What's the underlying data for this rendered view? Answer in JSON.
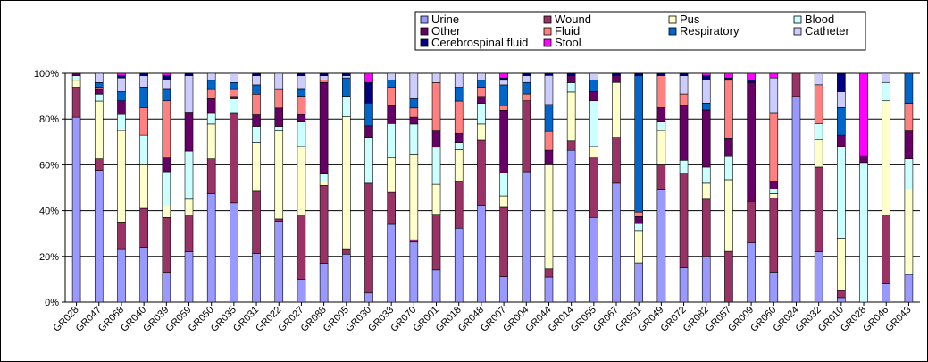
{
  "chart_data": {
    "type": "bar",
    "stacked": "percent",
    "title": "",
    "xlabel": "",
    "ylabel": "",
    "ylim": [
      0,
      100
    ],
    "y_ticks": [
      "0%",
      "20%",
      "40%",
      "60%",
      "80%",
      "100%"
    ],
    "legend_position": "top-right",
    "categories": [
      "GR028",
      "GR047",
      "GR068",
      "GR040",
      "GR039",
      "GR059",
      "GR050",
      "GR035",
      "GR031",
      "GR022",
      "GR027",
      "GR088",
      "GR005",
      "GR030",
      "GR033",
      "GR070",
      "GR001",
      "GR018",
      "GR048",
      "GR007",
      "GR004",
      "GR044",
      "GR014",
      "GR055",
      "GR067",
      "GR051",
      "GR049",
      "GR072",
      "GR082",
      "GR057",
      "GR009",
      "GR060",
      "GR024",
      "GR032",
      "GR010",
      "GR028",
      "GR046",
      "GR043"
    ],
    "tick_labels_shown": [
      "GR028",
      "GR047",
      "GR068",
      "GR040",
      "GR039",
      "GR059",
      "GR050",
      "GR035",
      "GR031",
      "GR022",
      "GR027",
      "GR088",
      "GR005",
      "GR030",
      "GR033",
      "GR070",
      "GR001",
      "GR018",
      "GR048",
      "GR007",
      "GR004",
      "GR044",
      "GR014",
      "GR055",
      "GR067",
      "GR051",
      "GR049",
      "GR072",
      "GR082",
      "GR057",
      "GR009",
      "GR060",
      "GR024",
      "GR032",
      "GR010",
      "GR028",
      "GR046",
      "GR043"
    ],
    "series": [
      {
        "name": "Urine",
        "color": "#9999ff",
        "values": [
          80,
          57,
          23,
          24,
          13,
          22,
          47,
          43,
          21,
          35,
          10,
          17,
          21,
          4,
          34,
          26,
          14,
          32,
          42,
          11,
          57,
          12,
          65,
          37,
          52,
          17,
          49,
          15,
          20,
          0,
          26,
          13,
          80,
          22,
          2,
          0,
          8,
          12
        ]
      },
      {
        "name": "Wound",
        "color": "#993366",
        "values": [
          13,
          5,
          12,
          17,
          24,
          16,
          15,
          39,
          27,
          1,
          28,
          34,
          2,
          48,
          14,
          1,
          24,
          20,
          28,
          30,
          31,
          4,
          4,
          26,
          20,
          0,
          11,
          41,
          25,
          22,
          18,
          32,
          9,
          37,
          3,
          0,
          30,
          0
        ]
      },
      {
        "name": "Pus",
        "color": "#ffffcc",
        "values": [
          3,
          25,
          40,
          19,
          5,
          7,
          15,
          0,
          21,
          38,
          30,
          2,
          58,
          0,
          15,
          37,
          13,
          14,
          7,
          5,
          0,
          50,
          21,
          5,
          24,
          14,
          15,
          0,
          7,
          31,
          0,
          2,
          0,
          12,
          23,
          0,
          50,
          37
        ]
      },
      {
        "name": "Blood",
        "color": "#ccffff",
        "values": [
          2,
          3,
          7,
          13,
          15,
          21,
          5,
          6,
          7,
          2,
          11,
          3,
          9,
          20,
          15,
          13,
          16,
          3,
          9,
          10,
          0,
          0,
          4,
          20,
          0,
          3,
          4,
          6,
          7,
          10,
          0,
          2,
          0,
          7,
          40,
          61,
          8,
          13
        ]
      },
      {
        "name": "Other",
        "color": "#660066",
        "values": [
          1,
          2,
          6,
          0,
          6,
          17,
          6,
          1,
          5,
          8,
          3,
          40,
          0,
          5,
          8,
          3,
          7,
          4,
          3,
          27,
          0,
          7,
          3,
          4,
          3,
          3,
          6,
          24,
          25,
          8,
          52,
          3,
          0,
          0,
          5,
          3,
          0,
          12
        ]
      },
      {
        "name": "Fluid",
        "color": "#ff8080",
        "values": [
          0,
          1,
          0,
          12,
          25,
          0,
          4,
          3,
          9,
          8,
          8,
          1,
          0,
          0,
          8,
          4,
          21,
          14,
          4,
          2,
          3,
          9,
          0,
          0,
          0,
          2,
          14,
          5,
          0,
          25,
          0,
          30,
          0,
          17,
          0,
          0,
          0,
          12
        ]
      },
      {
        "name": "Respiratory",
        "color": "#0066cc",
        "values": [
          0,
          2,
          4,
          9,
          5,
          0,
          4,
          3,
          4,
          0,
          3,
          0,
          8,
          10,
          3,
          4,
          0,
          6,
          3,
          9,
          5,
          13,
          0,
          5,
          0,
          59,
          0,
          0,
          3,
          0,
          0,
          0,
          0,
          0,
          12,
          0,
          0,
          13
        ]
      },
      {
        "name": "Catheter",
        "color": "#ccccff",
        "values": [
          0,
          4,
          6,
          5,
          4,
          16,
          3,
          4,
          4,
          7,
          6,
          2,
          1,
          0,
          3,
          11,
          4,
          6,
          3,
          2,
          3,
          14,
          0,
          3,
          0,
          0,
          0,
          8,
          10,
          0,
          0,
          15,
          0,
          5,
          7,
          0,
          4,
          0
        ]
      },
      {
        "name": "Cerebrospinal fluid",
        "color": "#000080",
        "values": [
          0,
          0,
          1,
          1,
          2,
          1,
          0,
          0,
          1,
          0,
          1,
          1,
          1,
          9,
          0,
          0,
          0,
          0,
          0,
          1,
          1,
          1,
          1,
          0,
          1,
          1,
          1,
          1,
          2,
          1,
          1,
          0,
          0,
          0,
          8,
          0,
          0,
          0
        ]
      },
      {
        "name": "Stool",
        "color": "#ff00ff",
        "values": [
          0,
          0,
          1,
          0,
          1,
          0,
          0,
          0,
          0,
          0,
          0,
          0,
          0,
          4,
          0,
          0,
          0,
          0,
          0,
          2,
          0,
          0,
          0,
          0,
          0,
          0,
          0,
          0,
          1,
          2,
          3,
          2,
          0,
          0,
          0,
          36,
          0,
          0
        ]
      }
    ]
  }
}
